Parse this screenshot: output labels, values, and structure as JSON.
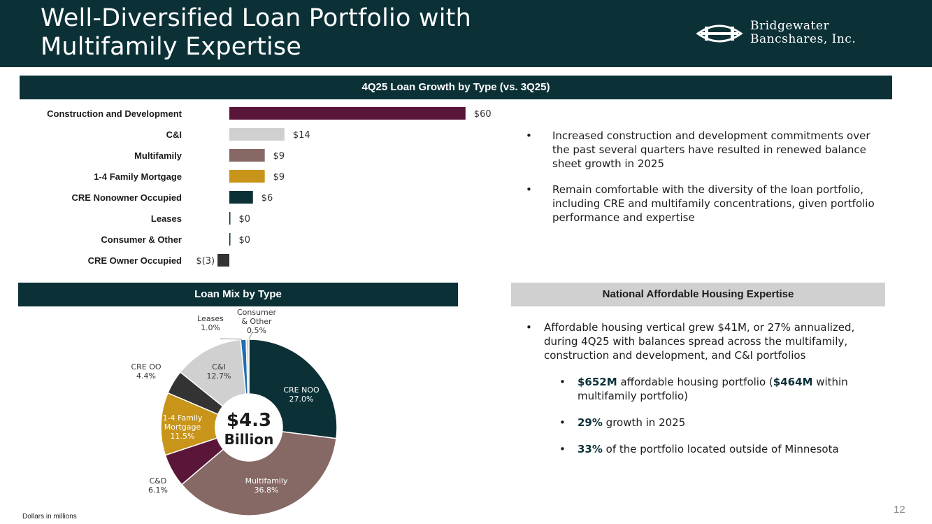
{
  "header": {
    "title_line1": "Well-Diversified Loan Portfolio with",
    "title_line2": "Multifamily Expertise",
    "logo_line1": "Bridgewater",
    "logo_line2": "Bancshares, Inc."
  },
  "bands": {
    "growth": "4Q25 Loan Growth by Type (vs. 3Q25)",
    "mix": "Loan Mix  by Type",
    "national": "National Affordable Housing Expertise"
  },
  "colors": {
    "dark_teal": "#0b3137",
    "maroon": "#5a1638",
    "light_gray": "#d0d0d0",
    "mauve": "#866864",
    "gold": "#c8941a",
    "charcoal": "#333333",
    "blue": "#1f6fb2",
    "cream": "#d9d2c2"
  },
  "chart_data": [
    {
      "type": "bar",
      "orientation": "horizontal",
      "title": "4Q25 Loan Growth by Type (vs. 3Q25)",
      "categories": [
        "Construction and Development",
        "C&I",
        "Multifamily",
        "1-4 Family Mortgage",
        "CRE Nonowner Occupied",
        "Leases",
        "Consumer & Other",
        "CRE Owner Occupied"
      ],
      "values": [
        60,
        14,
        9,
        9,
        6,
        0,
        0,
        -3
      ],
      "labels": [
        "$60",
        "$14",
        "$9",
        "$9",
        "$6",
        "$0",
        "$0",
        "$(3)"
      ],
      "colors": [
        "#5a1638",
        "#d0d0d0",
        "#866864",
        "#c8941a",
        "#0b3137",
        "#0b3137",
        "#0b3137",
        "#333333"
      ],
      "xlim": [
        -3,
        60
      ],
      "unit": "Dollars in millions",
      "grid": false
    },
    {
      "type": "pie",
      "donut": true,
      "title": "Loan Mix  by Type",
      "center_value": "$4.3",
      "center_unit": "Billion",
      "slices": [
        {
          "label": "CRE NOO",
          "value": 27.0,
          "pct": "27.0%",
          "color": "#0b3137"
        },
        {
          "label": "Multifamily",
          "value": 36.8,
          "pct": "36.8%",
          "color": "#866864"
        },
        {
          "label": "C&D",
          "value": 6.1,
          "pct": "6.1%",
          "color": "#5a1638"
        },
        {
          "label": "1-4 Family Mortgage",
          "value": 11.5,
          "pct": "11.5%",
          "color": "#c8941a"
        },
        {
          "label": "CRE OO",
          "value": 4.4,
          "pct": "4.4%",
          "color": "#333333"
        },
        {
          "label": "C&I",
          "value": 12.7,
          "pct": "12.7%",
          "color": "#d0d0d0"
        },
        {
          "label": "Leases",
          "value": 1.0,
          "pct": "1.0%",
          "color": "#1f6fb2"
        },
        {
          "label": "Consumer & Other",
          "value": 0.5,
          "pct": "0.5%",
          "color": "#d9d2c2"
        }
      ]
    }
  ],
  "bullets_top": [
    "Increased construction and development commitments over the past several quarters have resulted in renewed balance sheet growth in 2025",
    "Remain comfortable with the diversity of the loan portfolio, including CRE and multifamily concentrations, given portfolio performance and expertise"
  ],
  "bullets_nat": {
    "main": "Affordable housing vertical grew $41M, or 27% annualized, during 4Q25 with balances spread across the multifamily, construction and development, and C&I portfolios",
    "sub1_a": "$652M",
    "sub1_b": " affordable housing portfolio (",
    "sub1_c": "$464M",
    "sub1_d": " within multifamily portfolio)",
    "sub2_a": "29%",
    "sub2_b": " growth in 2025",
    "sub3_a": "33%",
    "sub3_b": " of the portfolio located outside of Minnesota"
  },
  "bullet_glyph": "•",
  "footnote": "Dollars in millions",
  "page_number": "12"
}
